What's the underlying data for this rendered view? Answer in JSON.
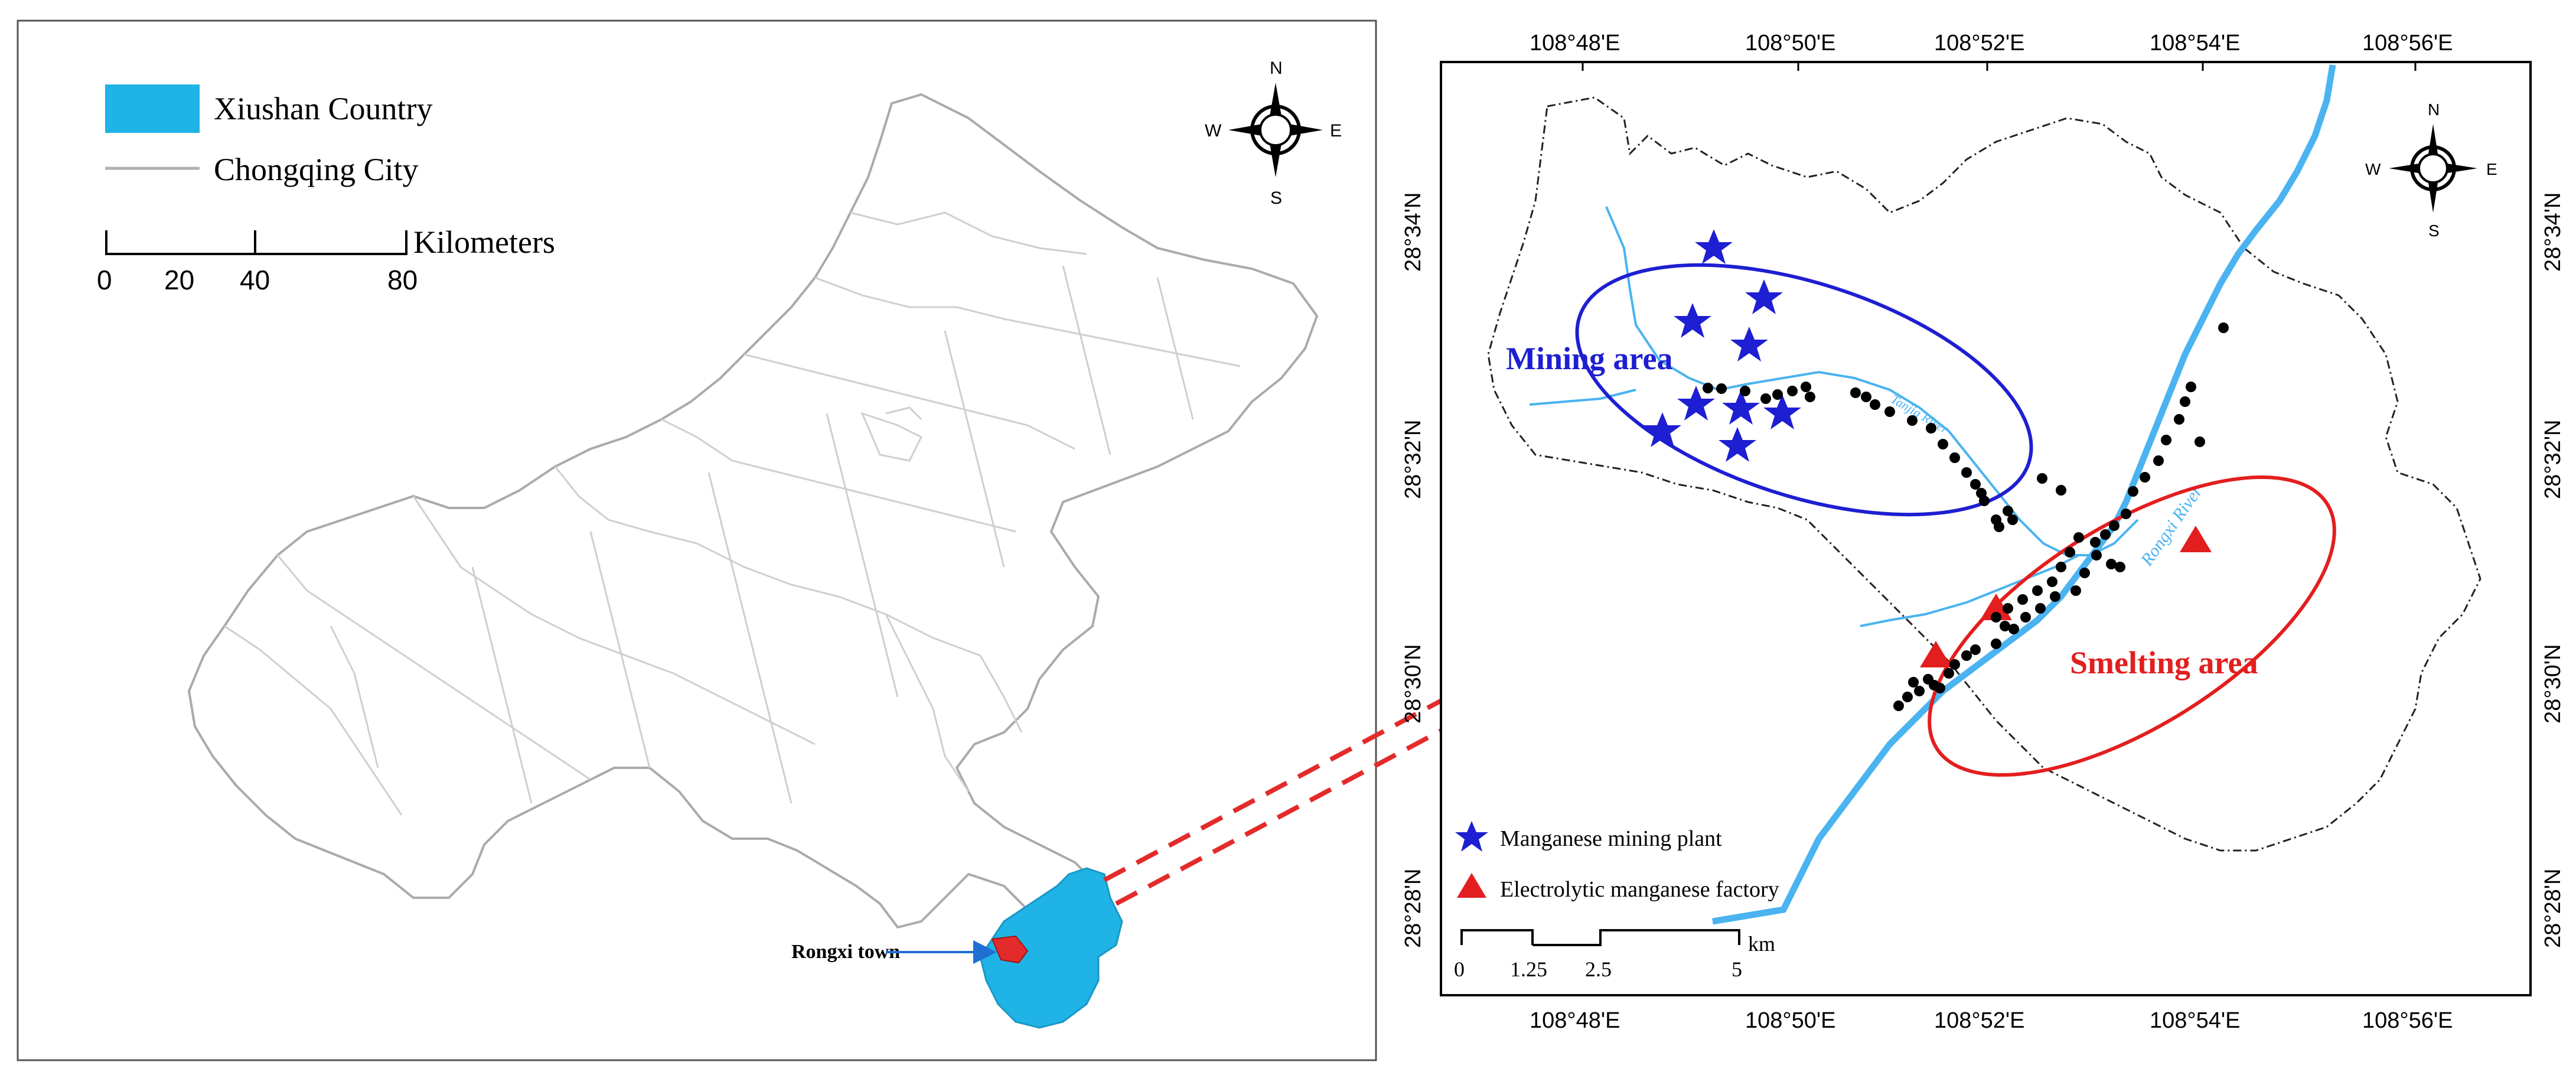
{
  "left_map": {
    "legend": {
      "county_label": "Xiushan Country",
      "city_label": "Chongqing City",
      "county_color": "#1fb3e6",
      "city_line_color": "#b0b0b0"
    },
    "scale_bar": {
      "ticks": [
        "0",
        "20",
        "40",
        "80"
      ],
      "unit": "Kilometers"
    },
    "north_arrow": {
      "n": "N",
      "s": "S",
      "e": "E",
      "w": "W"
    },
    "rongxi_label": "Rongxi town",
    "highlight_color": "#e32b2b"
  },
  "right_map": {
    "top_ticks": [
      "108°48'E",
      "108°50'E",
      "108°52'E",
      "108°54'E",
      "108°56'E"
    ],
    "bottom_ticks": [
      "108°48'E",
      "108°50'E",
      "108°52'E",
      "108°54'E",
      "108°56'E"
    ],
    "left_ticks": [
      "28°34'N",
      "28°32'N",
      "28°30'N",
      "28°28'N"
    ],
    "right_ticks": [
      "28°34'N",
      "28°32'N",
      "28°30'N",
      "28°28'N"
    ],
    "north_arrow": {
      "n": "N",
      "s": "S",
      "e": "E",
      "w": "W"
    },
    "mining_area_label": "Mining area",
    "smelting_area_label": "Smelting area",
    "river_label": "Rongxi River",
    "tributary_label": "Tanjia River",
    "legend": {
      "mining_plant": "Manganese mining plant",
      "factory": "Electrolytic manganese factory"
    },
    "scale_bar": {
      "ticks": [
        "0",
        "1.25",
        "2.5",
        "5"
      ],
      "unit": "km"
    },
    "colors": {
      "mining": "#1e1ed2",
      "smelting": "#e31e1e",
      "river": "#4ab3f0",
      "sample": "#000000"
    }
  }
}
